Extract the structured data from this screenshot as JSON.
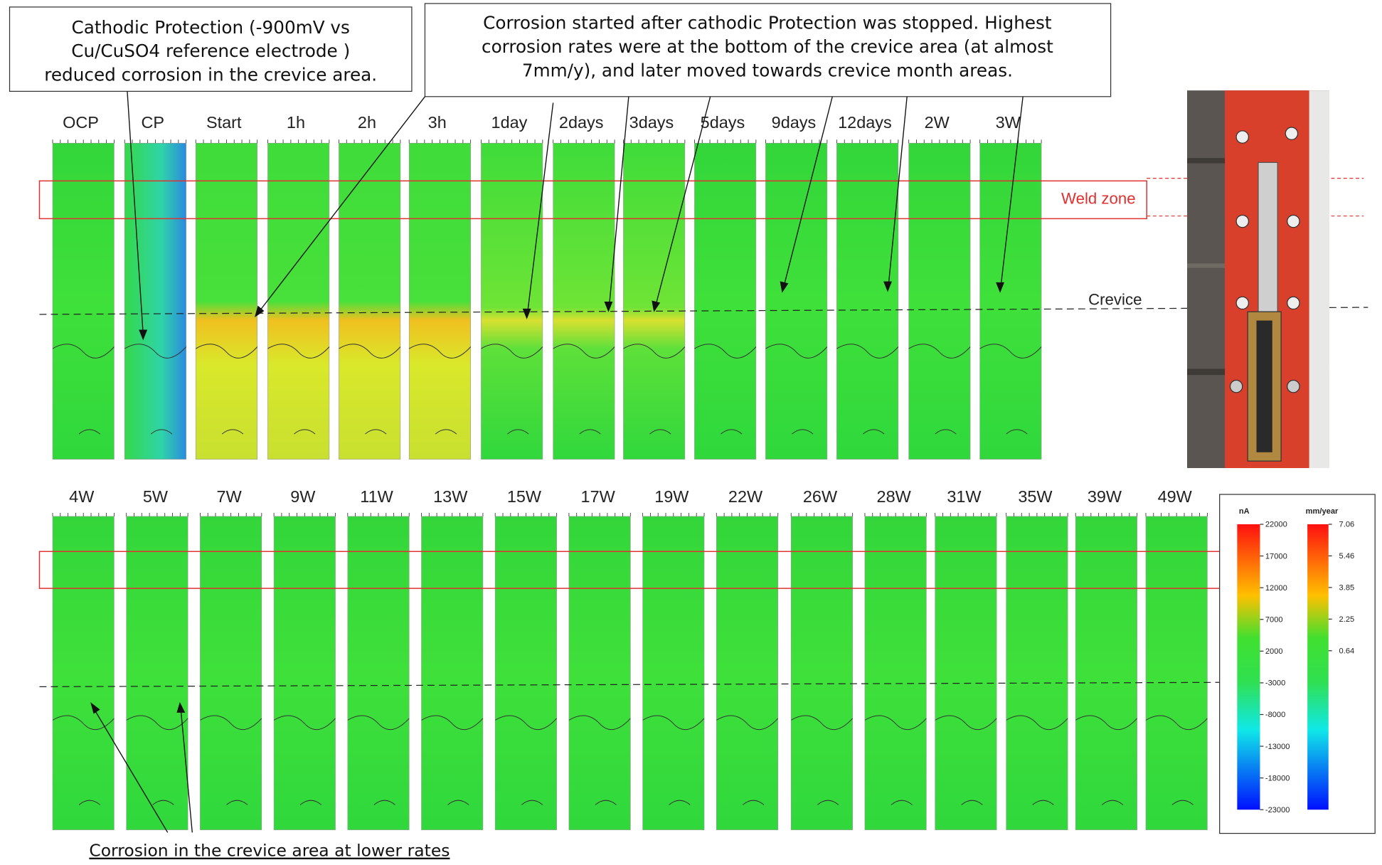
{
  "annotations": {
    "cathodic_protection": [
      "Cathodic Protection (-900mV vs",
      "Cu/CuSO4 reference electrode )",
      "reduced corrosion in the crevice area."
    ],
    "corrosion_started": [
      "Corrosion started after cathodic Protection was stopped. Highest",
      "corrosion rates were at the bottom of the crevice area (at almost",
      "7mm/y), and later moved towards crevice month areas."
    ],
    "lower_rates": "Corrosion in the crevice area at lower rates",
    "weld_zone": "Weld zone",
    "crevice": "Crevice"
  },
  "top_row": {
    "labels": [
      "OCP",
      "CP",
      "Start",
      "1h",
      "2h",
      "3h",
      "1day",
      "2days",
      "3days",
      "5days",
      "9days",
      "12days",
      "2W",
      "3W"
    ]
  },
  "bottom_row": {
    "labels": [
      "4W",
      "5W",
      "7W",
      "9W",
      "11W",
      "13W",
      "15W",
      "17W",
      "19W",
      "22W",
      "26W",
      "28W",
      "31W",
      "35W",
      "39W",
      "49W"
    ]
  },
  "legend": {
    "current_unit": "nA",
    "rate_unit": "mm/year",
    "current_ticks": [
      "22000",
      "17000",
      "12000",
      "7000",
      "2000",
      "-3000",
      "-8000",
      "-13000",
      "-18000",
      "-23000"
    ],
    "rate_ticks": [
      "7.06",
      "5.46",
      "3.85",
      "2.25",
      "0.64"
    ]
  }
}
